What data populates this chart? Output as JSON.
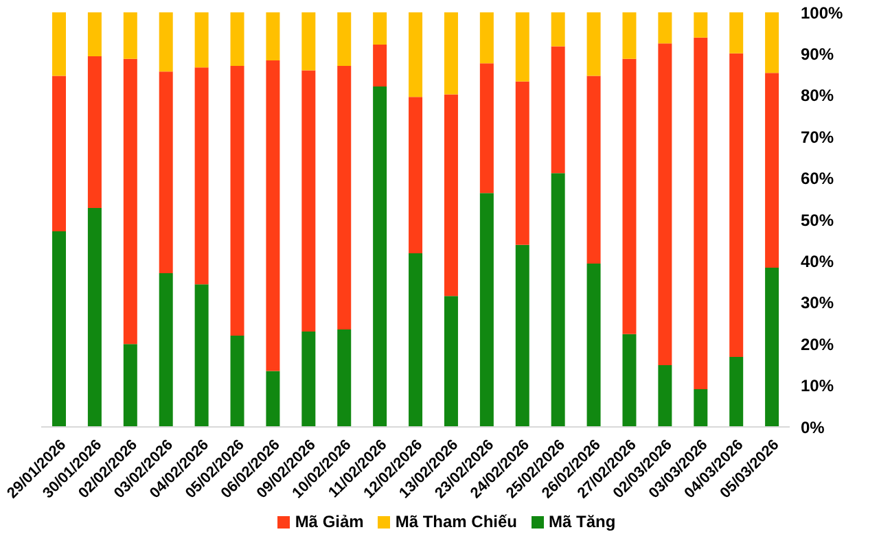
{
  "chart_data": {
    "type": "bar",
    "stacked": true,
    "categories": [
      "29/01/2026",
      "30/01/2026",
      "02/02/2026",
      "03/02/2026",
      "04/02/2026",
      "05/02/2026",
      "06/02/2026",
      "09/02/2026",
      "10/02/2026",
      "11/02/2026",
      "12/02/2026",
      "13/02/2026",
      "23/02/2026",
      "24/02/2026",
      "25/02/2026",
      "26/02/2026",
      "27/02/2026",
      "02/03/2026",
      "03/03/2026",
      "04/03/2026",
      "05/03/2026"
    ],
    "series": [
      {
        "name": "Mã Tăng",
        "color": "#118811",
        "values": [
          47.2,
          52.8,
          20.0,
          37.1,
          34.4,
          22.0,
          13.5,
          23.0,
          23.5,
          82.1,
          41.9,
          31.6,
          56.4,
          43.9,
          61.2,
          39.4,
          22.4,
          14.9,
          9.1,
          16.9,
          38.4
        ]
      },
      {
        "name": "Mã Giảm",
        "color": "#ff3e17",
        "values": [
          37.5,
          36.6,
          68.8,
          48.6,
          52.3,
          65.1,
          74.9,
          63.0,
          63.6,
          10.1,
          37.7,
          48.6,
          31.3,
          39.4,
          30.6,
          45.3,
          66.4,
          77.6,
          84.8,
          73.2,
          47.0
        ]
      },
      {
        "name": "Mã Tham Chiếu",
        "color": "#ffc000",
        "values": [
          15.3,
          10.6,
          11.2,
          14.3,
          13.3,
          12.9,
          11.6,
          14.0,
          12.9,
          7.8,
          20.4,
          19.8,
          12.3,
          16.7,
          8.2,
          15.3,
          11.2,
          7.5,
          6.1,
          9.9,
          14.6
        ]
      }
    ],
    "ylim": [
      0,
      100
    ],
    "yticks": [
      {
        "value": 0,
        "label": "0%"
      },
      {
        "value": 10,
        "label": "10%"
      },
      {
        "value": 20,
        "label": "20%"
      },
      {
        "value": 30,
        "label": "30%"
      },
      {
        "value": 40,
        "label": "40%"
      },
      {
        "value": 50,
        "label": "50%"
      },
      {
        "value": 60,
        "label": "60%"
      },
      {
        "value": 70,
        "label": "70%"
      },
      {
        "value": 80,
        "label": "80%"
      },
      {
        "value": 90,
        "label": "90%"
      },
      {
        "value": 100,
        "label": "100%"
      }
    ],
    "grid": false,
    "legend": "bottom"
  }
}
